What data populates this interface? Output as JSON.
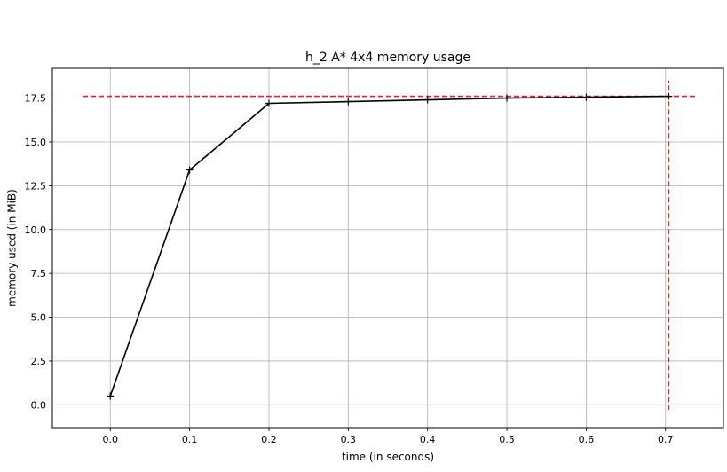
{
  "chart_data": {
    "type": "line",
    "title": "h_2 A* 4x4 memory usage",
    "xlabel": "time (in seconds)",
    "ylabel": "memory used (in MiB)",
    "xlim": [
      -0.073,
      0.773
    ],
    "ylim": [
      -1.3,
      19.2
    ],
    "x_ticks": [
      0.0,
      0.1,
      0.2,
      0.3,
      0.4,
      0.5,
      0.6,
      0.7
    ],
    "x_tick_labels": [
      "0.0",
      "0.1",
      "0.2",
      "0.3",
      "0.4",
      "0.5",
      "0.6",
      "0.7"
    ],
    "y_ticks": [
      0.0,
      2.5,
      5.0,
      7.5,
      10.0,
      12.5,
      15.0,
      17.5
    ],
    "y_tick_labels": [
      "0.0",
      "2.5",
      "5.0",
      "7.5",
      "10.0",
      "12.5",
      "15.0",
      "17.5"
    ],
    "grid": true,
    "series": [
      {
        "color": "#000000",
        "marker": "plus",
        "x": [
          0.0,
          0.1,
          0.2,
          0.3,
          0.4,
          0.5,
          0.6,
          0.704
        ],
        "y": [
          0.5,
          13.4,
          17.2,
          17.3,
          17.4,
          17.5,
          17.55,
          17.6
        ]
      }
    ],
    "reference_lines": [
      {
        "orientation": "horizontal",
        "value": 17.6,
        "from": -0.035,
        "to": 0.74,
        "style": "dashed",
        "color": "#d62728"
      },
      {
        "orientation": "vertical",
        "value": 0.704,
        "from": -0.3,
        "to": 18.5,
        "style": "dashed",
        "color": "#d62728"
      }
    ]
  }
}
